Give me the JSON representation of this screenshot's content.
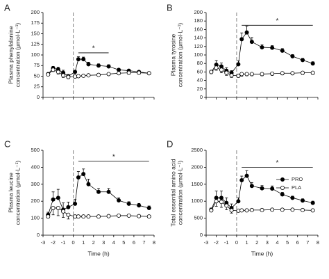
{
  "chart_data": [
    {
      "type": "line",
      "panel": "A",
      "ylabel": [
        "Plasma phenylalanine",
        "concentration (μmol·L⁻¹)"
      ],
      "x": [
        -2.5,
        -2,
        -1.5,
        -1,
        -0.5,
        0.17,
        0.5,
        1,
        1.5,
        2.5,
        3.5,
        4.5,
        5.5,
        6.5,
        7.5
      ],
      "xlim": [
        -3,
        8
      ],
      "xticks": [
        -3,
        -2,
        -1,
        0,
        1,
        2,
        3,
        4,
        5,
        6,
        7,
        8
      ],
      "xtick_labels": false,
      "ylim": [
        0,
        200
      ],
      "yticks": [
        0,
        25,
        50,
        75,
        100,
        125,
        150,
        175,
        200
      ],
      "vline": 0,
      "series": [
        {
          "name": "PRO",
          "color": "#000000",
          "marker_fill": "#000000",
          "error_side": "up",
          "values": [
            55,
            69,
            66,
            58,
            50,
            60,
            90,
            90,
            78,
            75,
            73,
            65,
            63,
            60,
            57
          ],
          "errors": [
            3,
            4,
            5,
            6,
            4,
            4,
            6,
            5,
            5,
            4,
            4,
            3,
            3,
            3,
            3
          ]
        },
        {
          "name": "PLA",
          "color": "#000000",
          "marker_fill": "#ffffff",
          "error_side": "down",
          "values": [
            54,
            65,
            60,
            52,
            48,
            49,
            50,
            51,
            52,
            53,
            55,
            57,
            58,
            58,
            57
          ],
          "errors": [
            3,
            4,
            5,
            5,
            4,
            3,
            3,
            3,
            3,
            3,
            3,
            3,
            3,
            3,
            3
          ]
        }
      ],
      "annotations": [
        {
          "text": "*",
          "x": [
            0.5,
            3.5
          ],
          "y": 105
        }
      ]
    },
    {
      "type": "line",
      "panel": "B",
      "ylabel": [
        "Plasma tyrosine",
        "concentration (μmol·L⁻¹)"
      ],
      "x": [
        -2.5,
        -2,
        -1.5,
        -1,
        -0.5,
        0.17,
        0.5,
        1,
        1.5,
        2.5,
        3.5,
        4.5,
        5.5,
        6.5,
        7.5
      ],
      "xlim": [
        -3,
        8
      ],
      "xticks": [
        -3,
        -2,
        -1,
        0,
        1,
        2,
        3,
        4,
        5,
        6,
        7,
        8
      ],
      "xtick_labels": false,
      "ylim": [
        0,
        200
      ],
      "yticks": [
        0,
        20,
        40,
        60,
        80,
        100,
        120,
        140,
        160,
        180,
        200
      ],
      "vline": 0,
      "series": [
        {
          "name": "PRO",
          "color": "#000000",
          "marker_fill": "#000000",
          "error_side": "up",
          "values": [
            60,
            77,
            73,
            63,
            58,
            78,
            137,
            153,
            131,
            118,
            117,
            110,
            97,
            88,
            80
          ],
          "errors": [
            4,
            10,
            8,
            7,
            5,
            8,
            15,
            15,
            10,
            6,
            5,
            5,
            4,
            4,
            4
          ]
        },
        {
          "name": "PLA",
          "color": "#000000",
          "marker_fill": "#ffffff",
          "error_side": "down",
          "values": [
            60,
            70,
            65,
            58,
            52,
            51,
            55,
            55,
            55,
            55,
            56,
            57,
            57,
            58,
            58
          ],
          "errors": [
            4,
            6,
            7,
            6,
            5,
            4,
            5,
            4,
            4,
            4,
            4,
            4,
            4,
            4,
            4
          ]
        }
      ],
      "annotations": [
        {
          "text": "*",
          "x": [
            0.5,
            7.5
          ],
          "y": 170
        }
      ]
    },
    {
      "type": "line",
      "panel": "C",
      "ylabel": [
        "Plasma leucine",
        "concentration (μmol·L⁻¹)"
      ],
      "xlabel": "Time (h)",
      "x": [
        -2.5,
        -2,
        -1.5,
        -1,
        -0.5,
        0.17,
        0.5,
        1,
        1.5,
        2.5,
        3.5,
        4.5,
        5.5,
        6.5,
        7.5
      ],
      "xlim": [
        -3,
        8
      ],
      "xticks": [
        -3,
        -2,
        -1,
        0,
        1,
        2,
        3,
        4,
        5,
        6,
        7,
        8
      ],
      "xtick_labels": true,
      "ylim": [
        0,
        500
      ],
      "yticks": [
        0,
        100,
        200,
        300,
        400,
        500
      ],
      "vline": 0,
      "series": [
        {
          "name": "PRO",
          "color": "#000000",
          "marker_fill": "#000000",
          "error_side": "up",
          "values": [
            120,
            210,
            220,
            150,
            165,
            185,
            340,
            360,
            300,
            255,
            255,
            205,
            185,
            175,
            160
          ],
          "errors": [
            15,
            45,
            50,
            40,
            30,
            25,
            35,
            30,
            30,
            20,
            20,
            15,
            12,
            12,
            12
          ]
        },
        {
          "name": "PLA",
          "color": "#000000",
          "marker_fill": "#ffffff",
          "error_side": "down",
          "values": [
            110,
            160,
            160,
            140,
            120,
            110,
            110,
            110,
            110,
            110,
            112,
            115,
            115,
            112,
            110
          ],
          "errors": [
            10,
            40,
            45,
            35,
            25,
            10,
            8,
            6,
            6,
            6,
            6,
            6,
            6,
            6,
            6
          ]
        }
      ],
      "annotations": [
        {
          "text": "*",
          "x": [
            0.5,
            7.5
          ],
          "y": 435
        }
      ]
    },
    {
      "type": "line",
      "panel": "D",
      "ylabel": [
        "Total essential amino acid",
        "concentration (μmol·L⁻¹)"
      ],
      "xlabel": "Time (h)",
      "x": [
        -2.5,
        -2,
        -1.5,
        -1,
        -0.5,
        0.17,
        0.5,
        1,
        1.5,
        2.5,
        3.5,
        4.5,
        5.5,
        6.5,
        7.5
      ],
      "xlim": [
        -3,
        8
      ],
      "xticks": [
        -3,
        -2,
        -1,
        0,
        1,
        2,
        3,
        4,
        5,
        6,
        7,
        8
      ],
      "xtick_labels": true,
      "ylim": [
        0,
        2500
      ],
      "yticks": [
        0,
        500,
        1000,
        1500,
        2000,
        2500
      ],
      "vline": 0,
      "legend": "upper right",
      "series": [
        {
          "name": "PRO",
          "color": "#000000",
          "marker_fill": "#000000",
          "error_side": "up",
          "values": [
            750,
            1100,
            1100,
            950,
            800,
            1000,
            1620,
            1750,
            1450,
            1380,
            1370,
            1200,
            1100,
            1020,
            950
          ],
          "errors": [
            50,
            200,
            200,
            150,
            120,
            100,
            120,
            150,
            100,
            80,
            80,
            60,
            50,
            50,
            50
          ]
        },
        {
          "name": "PLA",
          "color": "#000000",
          "marker_fill": "#ffffff",
          "error_side": "down",
          "values": [
            730,
            1000,
            980,
            870,
            730,
            720,
            730,
            730,
            740,
            740,
            750,
            750,
            750,
            740,
            730
          ],
          "errors": [
            40,
            150,
            160,
            120,
            80,
            40,
            30,
            30,
            30,
            30,
            30,
            30,
            30,
            30,
            30
          ]
        }
      ],
      "annotations": [
        {
          "text": "*",
          "x": [
            0.5,
            7.5
          ],
          "y": 2000
        }
      ]
    }
  ]
}
